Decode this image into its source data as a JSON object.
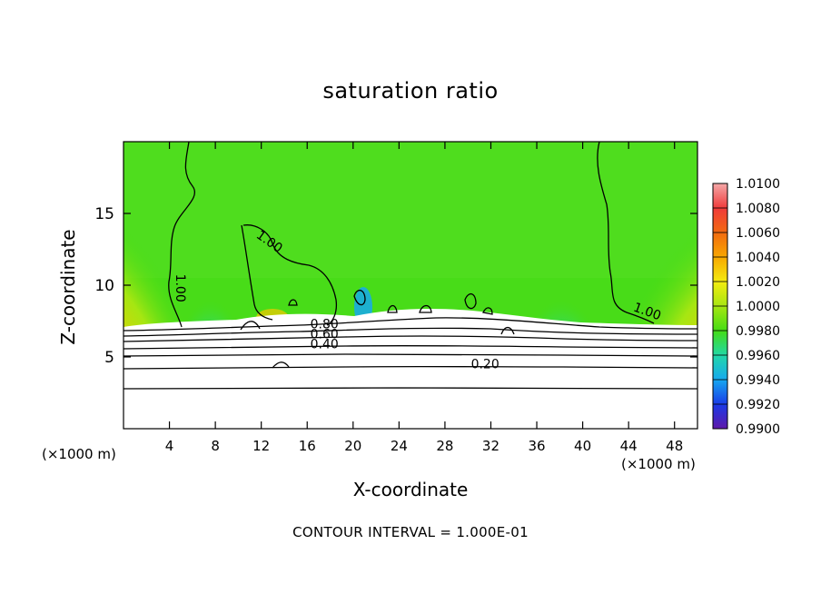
{
  "chart_data": {
    "type": "heatmap",
    "title": "saturation ratio",
    "xlabel": "X-coordinate",
    "ylabel": "Z-coordinate",
    "x_unit": "(×1000 m)",
    "footer": "CONTOUR INTERVAL = 1.000E-01",
    "xlim": [
      0,
      50
    ],
    "ylim": [
      0,
      20
    ],
    "x_ticks": [
      "4",
      "8",
      "12",
      "16",
      "20",
      "24",
      "28",
      "32",
      "36",
      "40",
      "44",
      "48"
    ],
    "y_ticks": [
      "5",
      "10",
      "15"
    ],
    "colorbar": {
      "levels": [
        "1.0100",
        "1.0080",
        "1.0060",
        "1.0040",
        "1.0020",
        "1.0000",
        "0.9980",
        "0.9960",
        "0.9940",
        "0.9920",
        "0.9900"
      ],
      "colors": [
        "#f4a8a8",
        "#f03a3a",
        "#f26a10",
        "#f8a800",
        "#f4ec10",
        "#a6e612",
        "#44dc14",
        "#22d8a8",
        "#16a8f0",
        "#1a3ae8",
        "#6018a8"
      ]
    },
    "contour_labels": [
      {
        "text": "1.00",
        "x": 12.5,
        "y": 12.8
      },
      {
        "text": "1.00",
        "x": 4.6,
        "y": 9.8
      },
      {
        "text": "1.00",
        "x": 45.5,
        "y": 7.9
      },
      {
        "text": "0.80",
        "x": 17.5,
        "y": 7.0
      },
      {
        "text": "0.60",
        "x": 17.5,
        "y": 6.3
      },
      {
        "text": "0.40",
        "x": 17.5,
        "y": 5.6
      },
      {
        "text": "0.20",
        "x": 31.5,
        "y": 4.2
      }
    ]
  }
}
